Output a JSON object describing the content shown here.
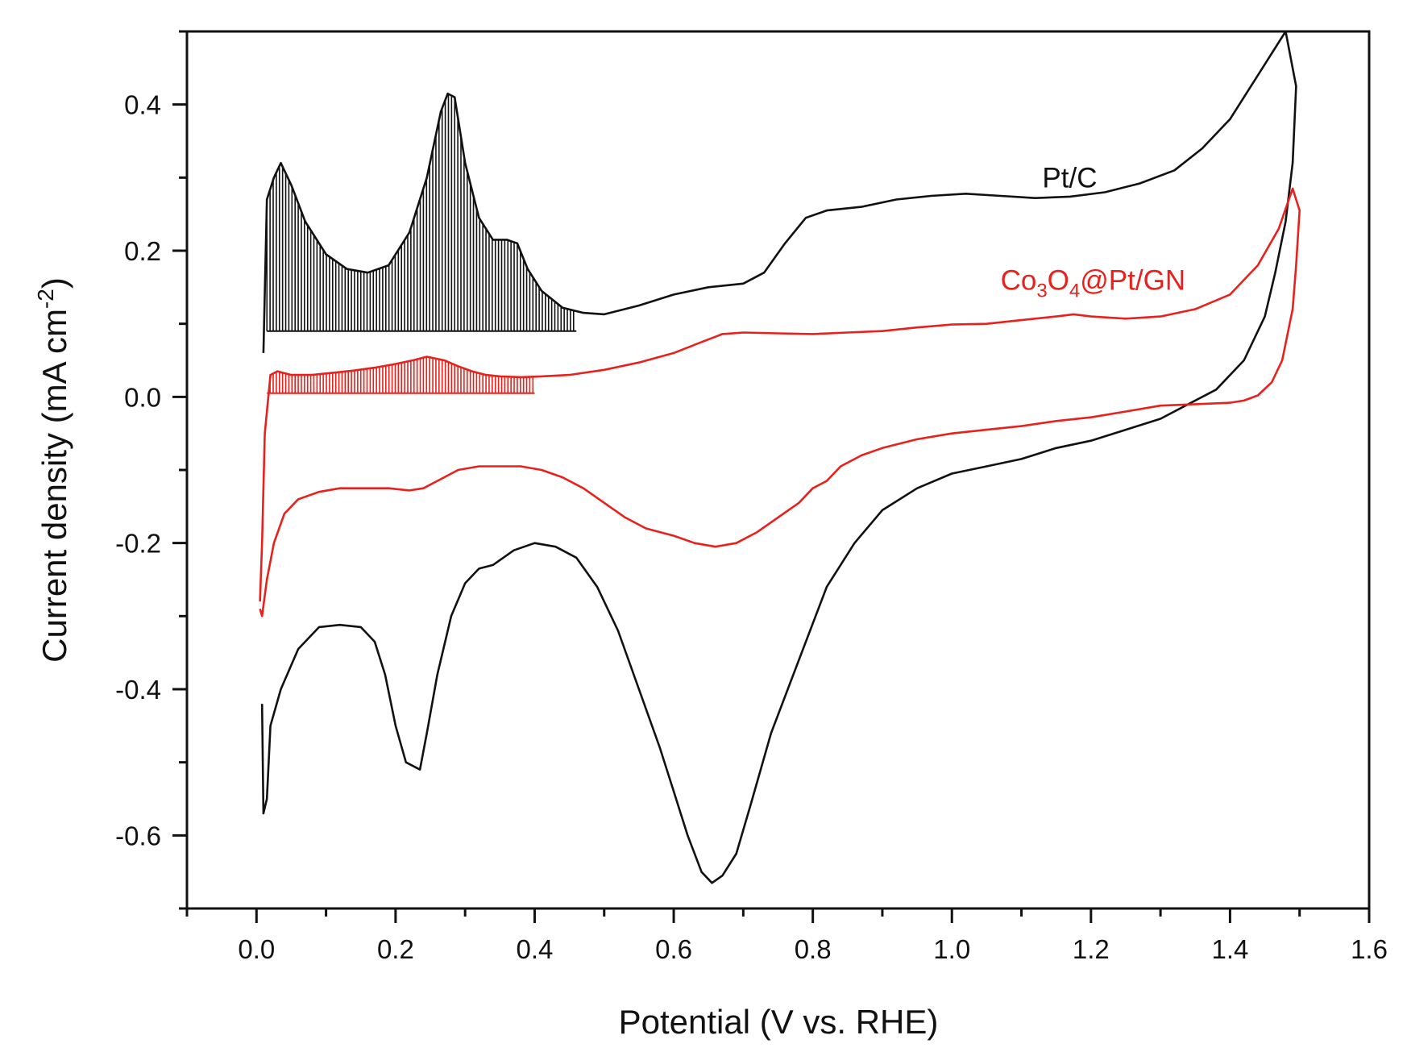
{
  "chart_data": {
    "type": "line",
    "title": "",
    "xlabel": "Potential (V vs. RHE)",
    "ylabel_main": "Current density (mA cm",
    "ylabel_sup": "-2",
    "ylabel_close": ")",
    "xlim": [
      -0.1,
      1.6
    ],
    "ylim": [
      -0.7,
      0.5
    ],
    "x_ticks": [
      0.0,
      0.2,
      0.4,
      0.6,
      0.8,
      1.0,
      1.2,
      1.4,
      1.6
    ],
    "x_tick_labels": [
      "0.0",
      "0.2",
      "0.4",
      "0.6",
      "0.8",
      "1.0",
      "1.2",
      "1.4",
      "1.6"
    ],
    "y_ticks": [
      0.4,
      0.2,
      0.0,
      -0.2,
      -0.4,
      -0.6
    ],
    "y_tick_labels": [
      "0.4",
      "0.2",
      "0.0",
      "-0.2",
      "-0.4",
      "-0.6"
    ],
    "grid": false,
    "series": [
      {
        "name": "Pt/C",
        "color": "#111111",
        "hatch_baseline": 0.09,
        "hatch_range": [
          0.015,
          0.46
        ],
        "anodic": [
          [
            0.01,
            0.06
          ],
          [
            0.015,
            0.27
          ],
          [
            0.025,
            0.3
          ],
          [
            0.035,
            0.32
          ],
          [
            0.05,
            0.29
          ],
          [
            0.07,
            0.24
          ],
          [
            0.1,
            0.195
          ],
          [
            0.13,
            0.175
          ],
          [
            0.16,
            0.17
          ],
          [
            0.19,
            0.18
          ],
          [
            0.22,
            0.225
          ],
          [
            0.245,
            0.3
          ],
          [
            0.265,
            0.39
          ],
          [
            0.275,
            0.415
          ],
          [
            0.285,
            0.41
          ],
          [
            0.3,
            0.32
          ],
          [
            0.32,
            0.245
          ],
          [
            0.34,
            0.215
          ],
          [
            0.36,
            0.215
          ],
          [
            0.375,
            0.21
          ],
          [
            0.39,
            0.175
          ],
          [
            0.41,
            0.145
          ],
          [
            0.44,
            0.122
          ],
          [
            0.47,
            0.115
          ],
          [
            0.5,
            0.113
          ],
          [
            0.55,
            0.125
          ],
          [
            0.6,
            0.14
          ],
          [
            0.65,
            0.15
          ],
          [
            0.7,
            0.155
          ],
          [
            0.73,
            0.17
          ],
          [
            0.76,
            0.21
          ],
          [
            0.79,
            0.245
          ],
          [
            0.82,
            0.255
          ],
          [
            0.87,
            0.26
          ],
          [
            0.92,
            0.27
          ],
          [
            0.97,
            0.275
          ],
          [
            1.02,
            0.278
          ],
          [
            1.07,
            0.275
          ],
          [
            1.12,
            0.272
          ],
          [
            1.17,
            0.274
          ],
          [
            1.22,
            0.28
          ],
          [
            1.27,
            0.292
          ],
          [
            1.32,
            0.31
          ],
          [
            1.36,
            0.34
          ],
          [
            1.4,
            0.38
          ],
          [
            1.44,
            0.44
          ],
          [
            1.48,
            0.5
          ]
        ],
        "cathodic": [
          [
            1.495,
            0.425
          ],
          [
            1.49,
            0.32
          ],
          [
            1.48,
            0.24
          ],
          [
            1.465,
            0.17
          ],
          [
            1.45,
            0.11
          ],
          [
            1.42,
            0.05
          ],
          [
            1.38,
            0.01
          ],
          [
            1.34,
            -0.01
          ],
          [
            1.3,
            -0.03
          ],
          [
            1.25,
            -0.045
          ],
          [
            1.2,
            -0.06
          ],
          [
            1.15,
            -0.07
          ],
          [
            1.1,
            -0.085
          ],
          [
            1.05,
            -0.095
          ],
          [
            1.0,
            -0.105
          ],
          [
            0.95,
            -0.125
          ],
          [
            0.9,
            -0.155
          ],
          [
            0.86,
            -0.2
          ],
          [
            0.82,
            -0.26
          ],
          [
            0.78,
            -0.36
          ],
          [
            0.74,
            -0.46
          ],
          [
            0.71,
            -0.56
          ],
          [
            0.69,
            -0.625
          ],
          [
            0.67,
            -0.655
          ],
          [
            0.655,
            -0.665
          ],
          [
            0.64,
            -0.65
          ],
          [
            0.62,
            -0.6
          ],
          [
            0.6,
            -0.54
          ],
          [
            0.58,
            -0.48
          ],
          [
            0.55,
            -0.4
          ],
          [
            0.52,
            -0.32
          ],
          [
            0.49,
            -0.26
          ],
          [
            0.46,
            -0.22
          ],
          [
            0.43,
            -0.205
          ],
          [
            0.4,
            -0.2
          ],
          [
            0.37,
            -0.21
          ],
          [
            0.34,
            -0.23
          ],
          [
            0.32,
            -0.235
          ],
          [
            0.3,
            -0.255
          ],
          [
            0.28,
            -0.3
          ],
          [
            0.26,
            -0.38
          ],
          [
            0.245,
            -0.46
          ],
          [
            0.235,
            -0.51
          ],
          [
            0.225,
            -0.505
          ],
          [
            0.215,
            -0.5
          ],
          [
            0.2,
            -0.45
          ],
          [
            0.185,
            -0.38
          ],
          [
            0.17,
            -0.335
          ],
          [
            0.15,
            -0.315
          ],
          [
            0.12,
            -0.312
          ],
          [
            0.09,
            -0.315
          ],
          [
            0.06,
            -0.345
          ],
          [
            0.035,
            -0.4
          ],
          [
            0.02,
            -0.45
          ],
          [
            0.015,
            -0.55
          ],
          [
            0.01,
            -0.57
          ],
          [
            0.008,
            -0.42
          ]
        ]
      },
      {
        "name": "Co3O4@Pt/GN",
        "legend_text": [
          "Co",
          "3",
          "O",
          "4",
          "@Pt/GN"
        ],
        "color": "#e8211c",
        "hatch_baseline": 0.005,
        "hatch_range": [
          0.015,
          0.4
        ],
        "anodic": [
          [
            0.005,
            -0.28
          ],
          [
            0.008,
            -0.2
          ],
          [
            0.012,
            -0.05
          ],
          [
            0.02,
            0.03
          ],
          [
            0.03,
            0.035
          ],
          [
            0.05,
            0.03
          ],
          [
            0.08,
            0.03
          ],
          [
            0.11,
            0.033
          ],
          [
            0.14,
            0.036
          ],
          [
            0.17,
            0.04
          ],
          [
            0.2,
            0.045
          ],
          [
            0.225,
            0.05
          ],
          [
            0.245,
            0.055
          ],
          [
            0.27,
            0.05
          ],
          [
            0.29,
            0.042
          ],
          [
            0.31,
            0.035
          ],
          [
            0.33,
            0.03
          ],
          [
            0.35,
            0.028
          ],
          [
            0.38,
            0.027
          ],
          [
            0.41,
            0.028
          ],
          [
            0.45,
            0.03
          ],
          [
            0.5,
            0.037
          ],
          [
            0.55,
            0.047
          ],
          [
            0.6,
            0.06
          ],
          [
            0.64,
            0.075
          ],
          [
            0.67,
            0.086
          ],
          [
            0.7,
            0.088
          ],
          [
            0.75,
            0.087
          ],
          [
            0.8,
            0.086
          ],
          [
            0.85,
            0.088
          ],
          [
            0.9,
            0.09
          ],
          [
            0.95,
            0.095
          ],
          [
            1.0,
            0.099
          ],
          [
            1.05,
            0.1
          ],
          [
            1.1,
            0.105
          ],
          [
            1.15,
            0.11
          ],
          [
            1.175,
            0.113
          ],
          [
            1.2,
            0.11
          ],
          [
            1.25,
            0.107
          ],
          [
            1.3,
            0.11
          ],
          [
            1.35,
            0.12
          ],
          [
            1.4,
            0.14
          ],
          [
            1.44,
            0.18
          ],
          [
            1.47,
            0.23
          ],
          [
            1.49,
            0.285
          ]
        ],
        "cathodic": [
          [
            1.5,
            0.255
          ],
          [
            1.495,
            0.18
          ],
          [
            1.49,
            0.12
          ],
          [
            1.475,
            0.05
          ],
          [
            1.46,
            0.02
          ],
          [
            1.44,
            0.002
          ],
          [
            1.42,
            -0.005
          ],
          [
            1.4,
            -0.008
          ],
          [
            1.35,
            -0.01
          ],
          [
            1.3,
            -0.012
          ],
          [
            1.25,
            -0.02
          ],
          [
            1.2,
            -0.028
          ],
          [
            1.15,
            -0.033
          ],
          [
            1.1,
            -0.04
          ],
          [
            1.05,
            -0.045
          ],
          [
            1.0,
            -0.05
          ],
          [
            0.95,
            -0.058
          ],
          [
            0.9,
            -0.07
          ],
          [
            0.87,
            -0.08
          ],
          [
            0.84,
            -0.095
          ],
          [
            0.82,
            -0.115
          ],
          [
            0.8,
            -0.125
          ],
          [
            0.78,
            -0.145
          ],
          [
            0.75,
            -0.165
          ],
          [
            0.72,
            -0.185
          ],
          [
            0.69,
            -0.2
          ],
          [
            0.66,
            -0.205
          ],
          [
            0.63,
            -0.2
          ],
          [
            0.6,
            -0.19
          ],
          [
            0.56,
            -0.18
          ],
          [
            0.53,
            -0.165
          ],
          [
            0.5,
            -0.145
          ],
          [
            0.47,
            -0.125
          ],
          [
            0.44,
            -0.11
          ],
          [
            0.41,
            -0.1
          ],
          [
            0.38,
            -0.095
          ],
          [
            0.35,
            -0.095
          ],
          [
            0.32,
            -0.095
          ],
          [
            0.29,
            -0.1
          ],
          [
            0.26,
            -0.115
          ],
          [
            0.24,
            -0.125
          ],
          [
            0.22,
            -0.128
          ],
          [
            0.19,
            -0.125
          ],
          [
            0.16,
            -0.125
          ],
          [
            0.12,
            -0.125
          ],
          [
            0.09,
            -0.13
          ],
          [
            0.06,
            -0.14
          ],
          [
            0.04,
            -0.16
          ],
          [
            0.025,
            -0.2
          ],
          [
            0.015,
            -0.25
          ],
          [
            0.008,
            -0.3
          ],
          [
            0.005,
            -0.29
          ]
        ]
      }
    ],
    "annotations": [
      {
        "text": "Pt/C",
        "x": 1.13,
        "y": 0.3,
        "color": "#111111"
      },
      {
        "text": "Co3O4@Pt/GN",
        "x": 1.18,
        "y": 0.16,
        "color": "#e8211c"
      }
    ]
  }
}
